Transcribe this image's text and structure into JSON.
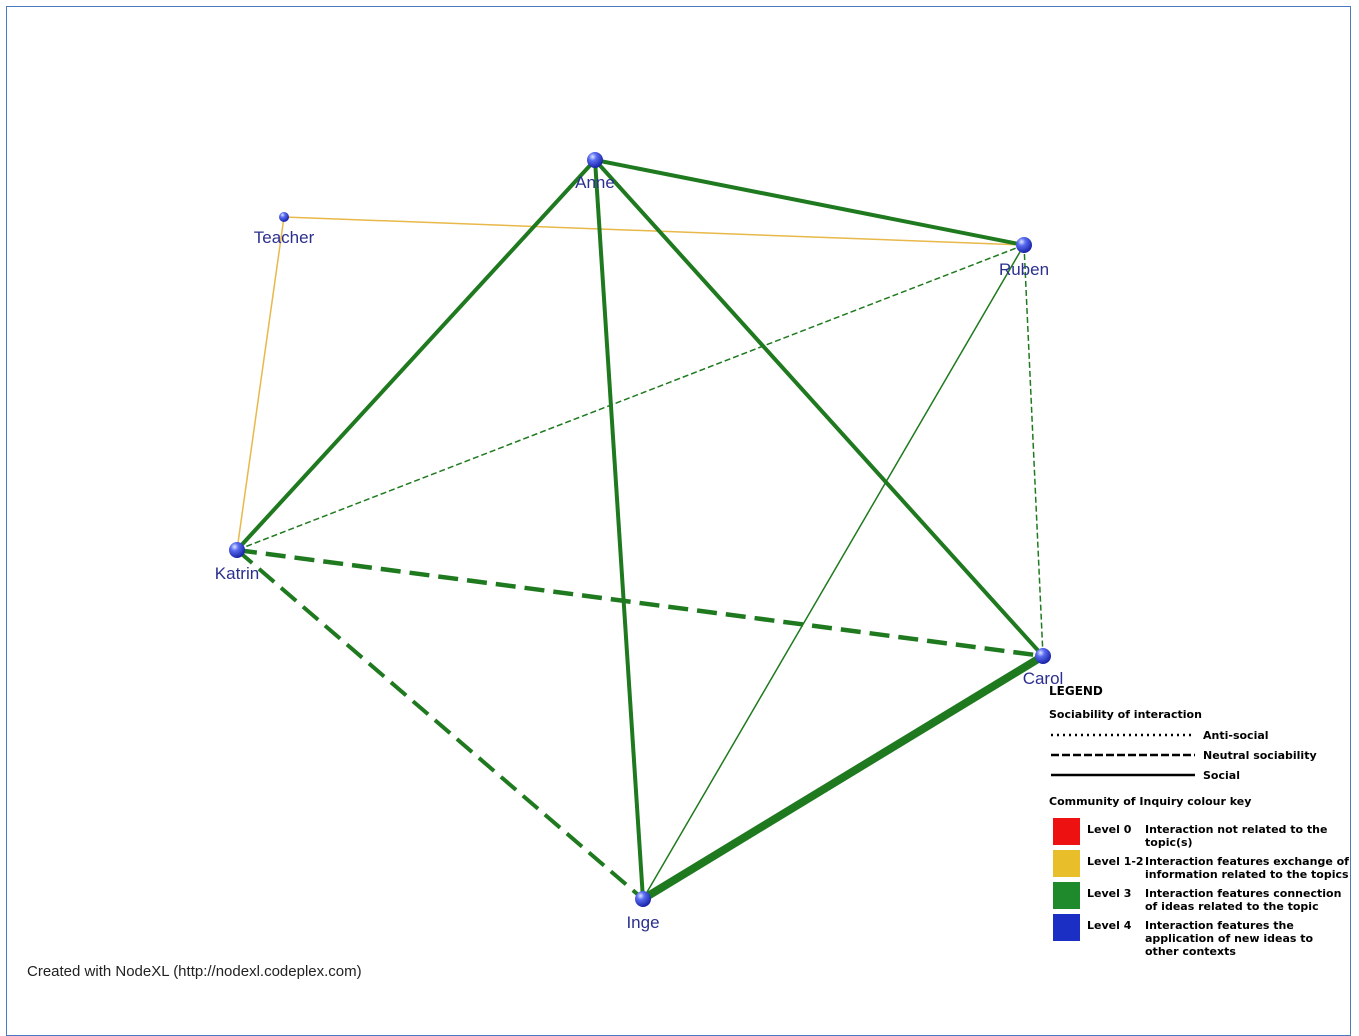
{
  "nodes": [
    {
      "id": "anne",
      "label": "Anne"
    },
    {
      "id": "teacher",
      "label": "Teacher"
    },
    {
      "id": "ruben",
      "label": "Ruben"
    },
    {
      "id": "katrin",
      "label": "Katrin"
    },
    {
      "id": "carol",
      "label": "Carol"
    },
    {
      "id": "inge",
      "label": "Inge"
    }
  ],
  "edges": [
    {
      "from": "teacher",
      "to": "ruben",
      "level": "Level 1-2",
      "sociability": "Social"
    },
    {
      "from": "teacher",
      "to": "katrin",
      "level": "Level 1-2",
      "sociability": "Social"
    },
    {
      "from": "anne",
      "to": "ruben",
      "level": "Level 3",
      "sociability": "Social"
    },
    {
      "from": "anne",
      "to": "katrin",
      "level": "Level 3",
      "sociability": "Social"
    },
    {
      "from": "anne",
      "to": "inge",
      "level": "Level 3",
      "sociability": "Social"
    },
    {
      "from": "anne",
      "to": "carol",
      "level": "Level 3",
      "sociability": "Social"
    },
    {
      "from": "ruben",
      "to": "katrin",
      "level": "Level 3",
      "sociability": "Neutral sociability"
    },
    {
      "from": "ruben",
      "to": "carol",
      "level": "Level 3",
      "sociability": "Neutral sociability"
    },
    {
      "from": "ruben",
      "to": "inge",
      "level": "Level 3",
      "sociability": "Social"
    },
    {
      "from": "katrin",
      "to": "carol",
      "level": "Level 3",
      "sociability": "Neutral sociability"
    },
    {
      "from": "katrin",
      "to": "inge",
      "level": "Level 3",
      "sociability": "Neutral sociability"
    },
    {
      "from": "carol",
      "to": "inge",
      "level": "Level 3",
      "sociability": "Social"
    }
  ],
  "legend": {
    "title": "LEGEND",
    "sociability_heading": "Sociability of interaction",
    "line_styles": [
      {
        "label": "Anti-social",
        "style": "dotted"
      },
      {
        "label": "Neutral sociability",
        "style": "dashed"
      },
      {
        "label": "Social",
        "style": "solid"
      }
    ],
    "colour_heading": "Community of Inquiry colour key",
    "levels": [
      {
        "level": "Level 0",
        "description": "Interaction not related to the topic(s)",
        "color": "#ee1111"
      },
      {
        "level": "Level 1-2",
        "description": "Interaction features exchange of information related to the topics",
        "color": "#e8be2a"
      },
      {
        "level": "Level 3",
        "description": "Interaction features connection of ideas related to the topic",
        "color": "#1f8a2c"
      },
      {
        "level": "Level 4",
        "description": "Interaction features the application of new ideas to other contexts",
        "color": "#1c2fc4"
      }
    ]
  },
  "footer": "Created with NodeXL (http://nodexl.codeplex.com)",
  "colors": {
    "edge_green": "#1f7a1f",
    "edge_yellow": "#e8b84a",
    "node_blue": "#2a3fd6",
    "label_color": "#2b2f8e",
    "frame_border": "#4a78c2"
  }
}
